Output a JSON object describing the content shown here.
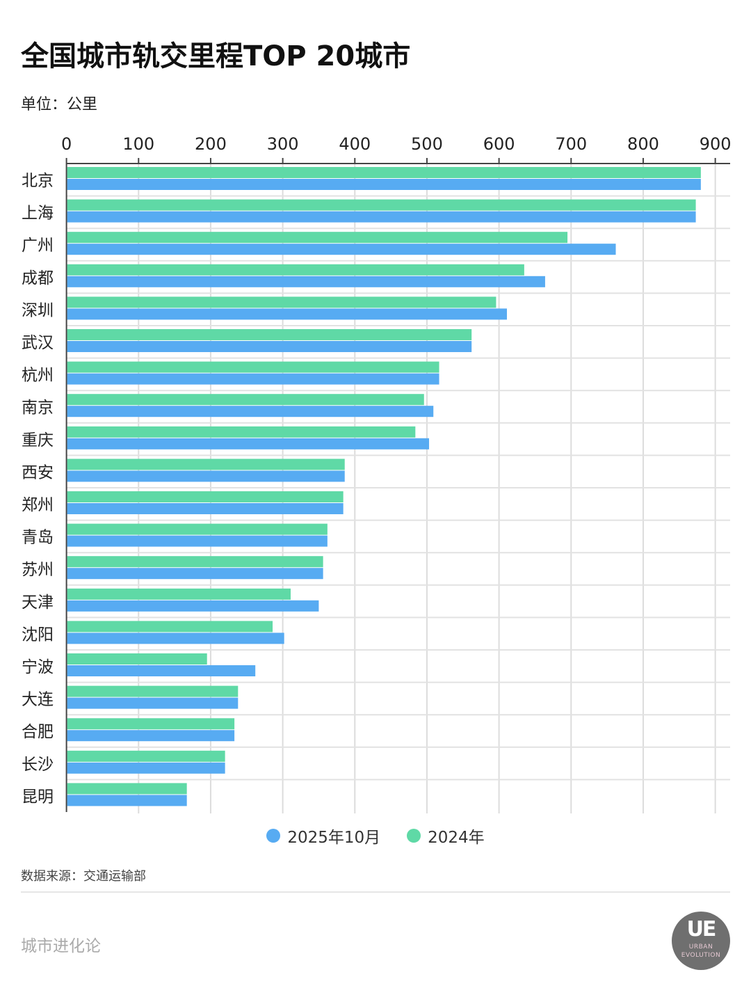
{
  "header": {
    "title": "全国城市轨交里程TOP 20城市",
    "unit": "单位：公里"
  },
  "chart_data": {
    "type": "bar",
    "orientation": "horizontal",
    "title": "全国城市轨交里程TOP 20城市",
    "xlabel": "",
    "ylabel": "",
    "xlim": [
      0,
      920
    ],
    "x_ticks": [
      "0",
      "100",
      "200",
      "300",
      "400",
      "500",
      "600",
      "700",
      "800",
      "900"
    ],
    "grid": true,
    "legend_position": "bottom",
    "categories": [
      "北京",
      "上海",
      "广州",
      "成都",
      "深圳",
      "武汉",
      "杭州",
      "南京",
      "重庆",
      "西安",
      "郑州",
      "青岛",
      "苏州",
      "天津",
      "沈阳",
      "宁波",
      "大连",
      "合肥",
      "长沙",
      "昆明"
    ],
    "series": [
      {
        "name": "2024年",
        "color": "#5fd9a6",
        "values": [
          879,
          872,
          694,
          634,
          595,
          561,
          516,
          495,
          483,
          385,
          383,
          361,
          355,
          310,
          285,
          194,
          237,
          232,
          219,
          166
        ]
      },
      {
        "name": "2025年10月",
        "color": "#57abf2",
        "values": [
          879,
          872,
          761,
          663,
          610,
          561,
          516,
          508,
          502,
          385,
          383,
          361,
          355,
          349,
          301,
          261,
          237,
          232,
          219,
          166
        ]
      }
    ],
    "legend_order": [
      "2025年10月",
      "2024年"
    ]
  },
  "footer": {
    "source": "数据来源：交通运输部",
    "brand": "城市进化论",
    "logo_text": "UE",
    "logo_sub1": "URBAN",
    "logo_sub2": "EVOLUTION"
  }
}
